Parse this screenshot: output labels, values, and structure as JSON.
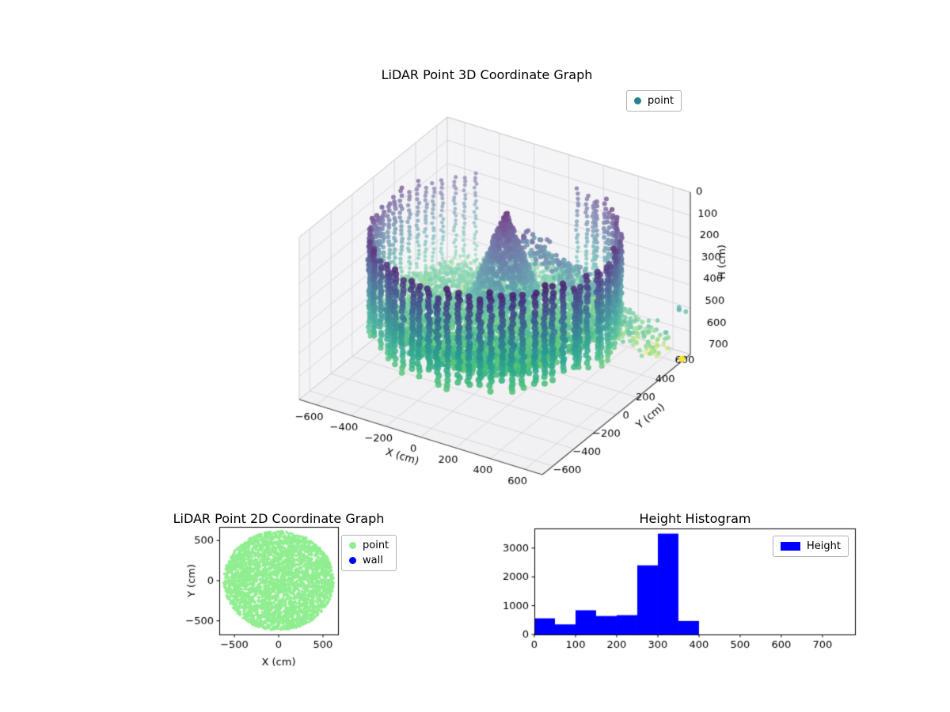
{
  "figure": {
    "background": "#ffffff"
  },
  "chart_data": [
    {
      "id": "lidar3d",
      "type": "scatter3d",
      "title": "LiDAR Point 3D Coordinate Graph",
      "xlabel": "X (cm)",
      "ylabel": "Y (cm)",
      "zlabel": "H (cm)",
      "xlim": [
        -700,
        700
      ],
      "ylim": [
        -700,
        700
      ],
      "zlim": [
        0,
        700
      ],
      "xticks": [
        -600,
        -400,
        -200,
        0,
        200,
        400,
        600
      ],
      "yticks": [
        -600,
        -400,
        -200,
        0,
        200,
        400,
        600
      ],
      "zticks": [
        0,
        100,
        200,
        300,
        400,
        500,
        600,
        700
      ],
      "z_axis_inverted_downward": true,
      "grid": true,
      "colormap": "viridis",
      "legend": [
        {
          "label": "point",
          "color": "#26828e",
          "marker": "dot"
        }
      ],
      "point_cloud": {
        "description": "circular LiDAR room scan: cylindrical ring of vertical point columns, interior floor disc, central peaked mound, cascade of points spilling through a gap toward +X/+Y, one yellow outlier",
        "ring": {
          "radius_cm": 615,
          "angle_step_deg": 5,
          "gap_angle_deg": [
            82,
            128
          ],
          "h_top_cm": 90,
          "h_bottom_cm": 470,
          "points_per_column": 22
        },
        "floor": {
          "radius_cm": 545,
          "h_cm": 430,
          "count": 3000
        },
        "peak": {
          "center_x_cm": -30,
          "center_y_cm": 150,
          "radius_cm": 170,
          "h_apex_cm": 60,
          "h_base_cm": 420,
          "count": 800
        },
        "cascade": {
          "from": [
            0,
            250,
            180
          ],
          "to": [
            620,
            520,
            620
          ],
          "count": 380
        },
        "strays": [
          {
            "x_cm": 720,
            "y_cm": 560,
            "h_cm": 440
          },
          {
            "x_cm": 745,
            "y_cm": 520,
            "h_cm": 430
          },
          {
            "x_cm": 735,
            "y_cm": 600,
            "h_cm": 470
          },
          {
            "x_cm": 700,
            "y_cm": 470,
            "h_cm": 520
          }
        ],
        "outlier": {
          "x_cm": 700,
          "y_cm": 620,
          "h_cm": 690,
          "color_t": 0.99
        }
      }
    },
    {
      "id": "lidar2d",
      "type": "scatter",
      "title": "LiDAR Point 2D Coordinate Graph",
      "xlabel": "X (cm)",
      "ylabel": "Y (cm)",
      "xlim": [
        -670,
        670
      ],
      "ylim": [
        -670,
        670
      ],
      "xticks": [
        -500,
        0,
        500
      ],
      "yticks": [
        -500,
        0,
        500
      ],
      "legend": [
        {
          "label": "point",
          "color": "#90ee90",
          "marker": "dot"
        },
        {
          "label": "wall",
          "color": "#0000ff",
          "marker": "dot"
        }
      ],
      "disc": {
        "radius_cm": 620,
        "color": "#90ee90",
        "count": 3400
      }
    },
    {
      "id": "height_histogram",
      "type": "bar",
      "title": "Height Histogram",
      "bar_color": "#0000ff",
      "bin_width": 50,
      "bin_starts": [
        0,
        50,
        100,
        150,
        200,
        250,
        300,
        350
      ],
      "values": [
        560,
        350,
        840,
        640,
        670,
        2400,
        3500,
        470
      ],
      "xlim": [
        0,
        779
      ],
      "ylim": [
        0,
        3680
      ],
      "xticks": [
        0,
        100,
        200,
        300,
        400,
        500,
        600,
        700
      ],
      "yticks": [
        0,
        1000,
        2000,
        3000
      ],
      "legend": [
        {
          "label": "Height",
          "color": "#0000ff",
          "marker": "rect"
        }
      ]
    }
  ]
}
